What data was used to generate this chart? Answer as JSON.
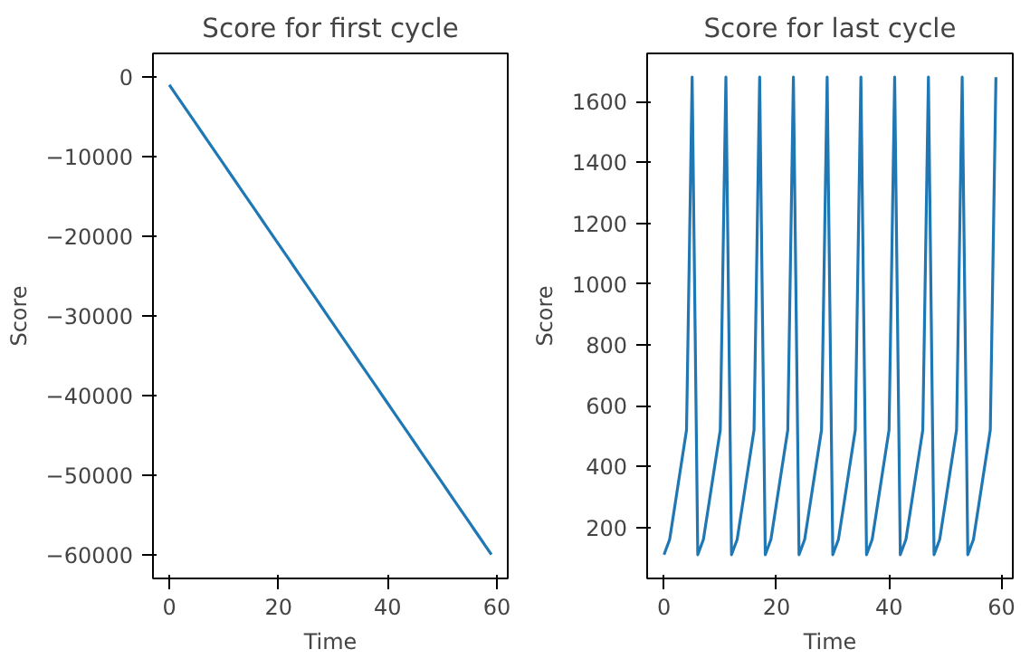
{
  "chart_data": [
    {
      "type": "line",
      "title": "Score for first cycle",
      "xlabel": "Time",
      "ylabel": "Score",
      "grid": false,
      "x": [
        0,
        1,
        2,
        3,
        4,
        5,
        6,
        7,
        8,
        9,
        10,
        11,
        12,
        13,
        14,
        15,
        16,
        17,
        18,
        19,
        20,
        21,
        22,
        23,
        24,
        25,
        26,
        27,
        28,
        29,
        30,
        31,
        32,
        33,
        34,
        35,
        36,
        37,
        38,
        39,
        40,
        41,
        42,
        43,
        44,
        45,
        46,
        47,
        48,
        49,
        50,
        51,
        52,
        53,
        54,
        55,
        56,
        57,
        58,
        59
      ],
      "series": [
        {
          "color": "#1f77b4",
          "values": [
            -1000,
            -2000,
            -3000,
            -4000,
            -5000,
            -6000,
            -7000,
            -8000,
            -9000,
            -10000,
            -11000,
            -12000,
            -13000,
            -14000,
            -15000,
            -16000,
            -17000,
            -18000,
            -19000,
            -20000,
            -21000,
            -22000,
            -23000,
            -24000,
            -25000,
            -26000,
            -27000,
            -28000,
            -29000,
            -30000,
            -31000,
            -32000,
            -33000,
            -34000,
            -35000,
            -36000,
            -37000,
            -38000,
            -39000,
            -40000,
            -41000,
            -42000,
            -43000,
            -44000,
            -45000,
            -46000,
            -47000,
            -48000,
            -49000,
            -50000,
            -51000,
            -52000,
            -53000,
            -54000,
            -55000,
            -56000,
            -57000,
            -58000,
            -59000,
            -60000
          ]
        }
      ],
      "xlim": [
        -3,
        62
      ],
      "xticks": [
        0,
        20,
        40,
        60
      ],
      "ylim": [
        -63000,
        2950
      ],
      "yticks": [
        0,
        -10000,
        -20000,
        -30000,
        -40000,
        -50000,
        -60000
      ]
    },
    {
      "type": "line",
      "title": "Score for last cycle",
      "xlabel": "Time",
      "ylabel": "Score",
      "grid": false,
      "x": [
        0,
        1,
        2,
        3,
        4,
        5,
        6,
        7,
        8,
        9,
        10,
        11,
        12,
        13,
        14,
        15,
        16,
        17,
        18,
        19,
        20,
        21,
        22,
        23,
        24,
        25,
        26,
        27,
        28,
        29,
        30,
        31,
        32,
        33,
        34,
        35,
        36,
        37,
        38,
        39,
        40,
        41,
        42,
        43,
        44,
        45,
        46,
        47,
        48,
        49,
        50,
        51,
        52,
        53,
        54,
        55,
        56,
        57,
        58,
        59
      ],
      "series": [
        {
          "color": "#1f77b4",
          "values": [
            110,
            160,
            280,
            400,
            520,
            1680,
            110,
            160,
            280,
            400,
            520,
            1680,
            110,
            160,
            280,
            400,
            520,
            1680,
            110,
            160,
            280,
            400,
            520,
            1680,
            110,
            160,
            280,
            400,
            520,
            1680,
            110,
            160,
            280,
            400,
            520,
            1680,
            110,
            160,
            280,
            400,
            520,
            1680,
            110,
            160,
            280,
            400,
            520,
            1680,
            110,
            160,
            280,
            400,
            520,
            1680,
            110,
            160,
            280,
            400,
            520,
            1680
          ]
        }
      ],
      "xlim": [
        -3,
        62
      ],
      "xticks": [
        0,
        20,
        40,
        60
      ],
      "ylim": [
        32,
        1758
      ],
      "yticks": [
        200,
        400,
        600,
        800,
        1000,
        1200,
        1400,
        1600
      ]
    }
  ]
}
